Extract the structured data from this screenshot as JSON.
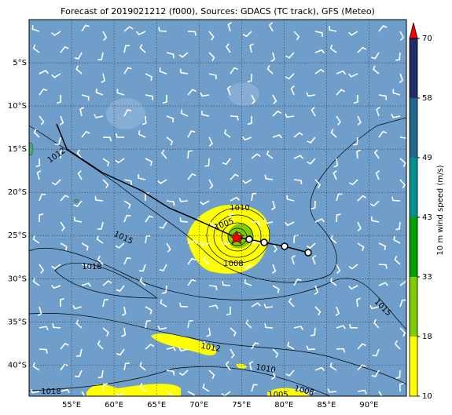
{
  "title": "Forecast of 2019021212 (f000), Sources: GDACS (TC track), GFS (Meteo)",
  "lonlim": [
    50,
    94.4
  ],
  "latlim": [
    0,
    -43.6
  ],
  "lon_ticks": [
    {
      "value": 55,
      "label": "55°E"
    },
    {
      "value": 60,
      "label": "60°E"
    },
    {
      "value": 65,
      "label": "65°E"
    },
    {
      "value": 70,
      "label": "70°E"
    },
    {
      "value": 75,
      "label": "75°E"
    },
    {
      "value": 80,
      "label": "80°E"
    },
    {
      "value": 85,
      "label": "85°E"
    },
    {
      "value": 90,
      "label": "90°E"
    }
  ],
  "lat_ticks": [
    {
      "value": -5,
      "label": "5°S"
    },
    {
      "value": -10,
      "label": "10°S"
    },
    {
      "value": -15,
      "label": "15°S"
    },
    {
      "value": -20,
      "label": "20°S"
    },
    {
      "value": -25,
      "label": "25°S"
    },
    {
      "value": -30,
      "label": "30°S"
    },
    {
      "value": -35,
      "label": "35°S"
    },
    {
      "value": -40,
      "label": "40°S"
    }
  ],
  "grid": true,
  "colorbar": {
    "label": "10 m wind speed (m/s)",
    "ticks": [
      10,
      18,
      33,
      43,
      49,
      58,
      70
    ],
    "colors": [
      "#ffff00",
      "#7fcc00",
      "#00a000",
      "#009090",
      "#1f6688",
      "#1f2f6a"
    ]
  },
  "isobar_labels": [
    1012,
    1015,
    1018,
    1010,
    1005,
    1008,
    1012,
    1010,
    1008,
    1005,
    1015,
    1018
  ]
}
